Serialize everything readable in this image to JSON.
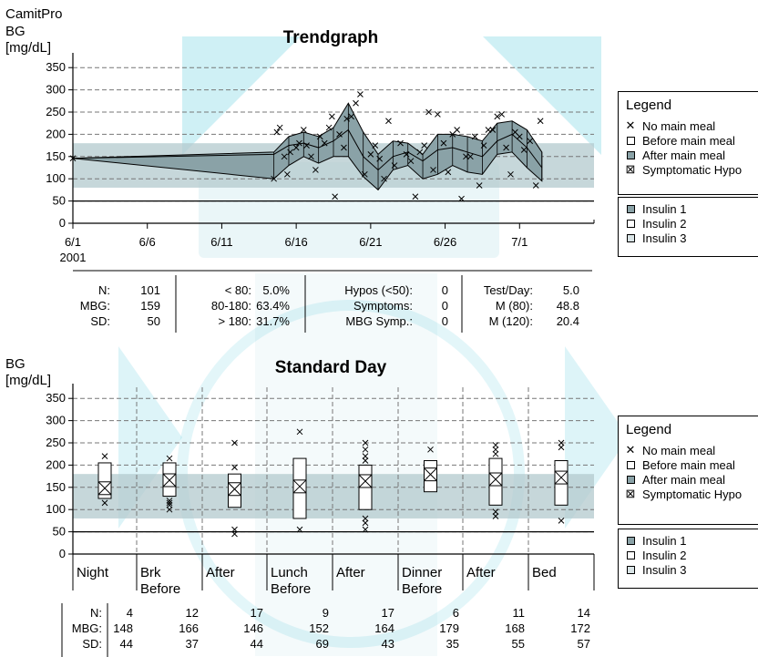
{
  "header": {
    "app": "CamitPro",
    "bg_label": "BG",
    "unit": "[mg/dL]"
  },
  "colors": {
    "target_band": "#b3c9cd",
    "envelope": "#8aa2a7",
    "box_fill": "#ffffff",
    "watermark": "#40c4d8"
  },
  "trend_stats": {
    "col1": [
      {
        "label": "N:",
        "value": "101"
      },
      {
        "label": "MBG:",
        "value": "159"
      },
      {
        "label": "SD:",
        "value": "50"
      }
    ],
    "col2": [
      {
        "label": "< 80:",
        "value": "5.0%"
      },
      {
        "label": "80-180:",
        "value": "63.4%"
      },
      {
        "label": "> 180:",
        "value": "31.7%"
      }
    ],
    "col3": [
      {
        "label": "Hypos (<50):",
        "value": "0"
      },
      {
        "label": "Symptoms:",
        "value": "0"
      },
      {
        "label": "MBG Symp.:",
        "value": "0"
      }
    ],
    "col4": [
      {
        "label": "Test/Day:",
        "value": "5.0"
      },
      {
        "label": "M (80):",
        "value": "48.8"
      },
      {
        "label": "M (120):",
        "value": "20.4"
      }
    ]
  },
  "std_stats": {
    "labels": [
      "N:",
      "MBG:",
      "SD:"
    ],
    "N": [
      "4",
      "12",
      "17",
      "9",
      "17",
      "6",
      "11",
      "14"
    ],
    "MBG": [
      "148",
      "166",
      "146",
      "152",
      "164",
      "179",
      "168",
      "172"
    ],
    "SD": [
      "44",
      "37",
      "44",
      "69",
      "43",
      "35",
      "55",
      "57"
    ]
  },
  "legend1": {
    "title": "Legend",
    "items": [
      {
        "icon": "x-mark-icon",
        "label": "No main meal"
      },
      {
        "icon": "empty-square-icon",
        "label": "Before main meal"
      },
      {
        "icon": "gray-square-icon",
        "label": "After main meal"
      },
      {
        "icon": "crossed-square-icon",
        "label": "Symptomatic Hypo"
      }
    ],
    "insulin": [
      "Insulin 1",
      "Insulin 2",
      "Insulin 3"
    ]
  },
  "legend2": {
    "title": "Legend",
    "items": [
      {
        "icon": "x-mark-icon",
        "label": "No main meal"
      },
      {
        "icon": "empty-square-icon",
        "label": "Before main meal"
      },
      {
        "icon": "gray-square-icon",
        "label": "After main meal"
      },
      {
        "icon": "crossed-square-icon",
        "label": "Symptomatic Hypo"
      }
    ],
    "insulin": [
      "Insulin 1",
      "Insulin 2",
      "Insulin 3"
    ]
  },
  "chart_data": [
    {
      "type": "line",
      "title": "Trendgraph",
      "ylabel": "BG [mg/dL]",
      "ylim": [
        0,
        375
      ],
      "yticks": [
        "0",
        "50",
        "100",
        "150",
        "200",
        "250",
        "300",
        "350"
      ],
      "xticks": [
        "6/1",
        "6/6",
        "6/11",
        "6/16",
        "6/21",
        "6/26",
        "7/1"
      ],
      "xtick_days": [
        0,
        5,
        10,
        15,
        20,
        25,
        30
      ],
      "x_year_label": "2001",
      "x_range_days": [
        0,
        35
      ],
      "target_range": [
        80,
        180
      ],
      "reference_line": 50,
      "grid": "horizontal dashed",
      "series": [
        {
          "x": [
            0,
            13.5,
            14.5,
            15.5,
            16.5,
            17.5,
            18.5,
            19.5,
            20.5,
            21.5,
            22.5,
            23.5,
            24.5,
            25.5,
            26.5,
            27.5,
            28.5,
            29.5,
            30.5,
            31.5
          ],
          "upper": [
            146,
            160,
            195,
            205,
            195,
            215,
            270,
            205,
            155,
            185,
            180,
            155,
            200,
            200,
            195,
            185,
            225,
            230,
            210,
            160
          ],
          "mean": [
            146,
            155,
            175,
            180,
            170,
            185,
            210,
            150,
            120,
            150,
            160,
            140,
            165,
            170,
            160,
            150,
            185,
            200,
            170,
            125
          ],
          "lower": [
            146,
            100,
            130,
            150,
            135,
            150,
            150,
            105,
            75,
            120,
            130,
            100,
            110,
            130,
            115,
            110,
            155,
            160,
            125,
            95
          ]
        },
        {
          "x": [
            0,
            13.5,
            13.7,
            13.9,
            14.2,
            14.4,
            14.6,
            15,
            15.2,
            15.5,
            15.7,
            16,
            16.3,
            16.6,
            16.9,
            17.2,
            17.4,
            17.6,
            17.9,
            18.2,
            18.4,
            18.7,
            19,
            19.3,
            19.6,
            20,
            20.3,
            20.6,
            20.9,
            21.2,
            21.6,
            22,
            22.4,
            22.7,
            23,
            23.3,
            23.6,
            23.9,
            24.2,
            24.5,
            24.9,
            25.2,
            25.5,
            25.8,
            26.1,
            26.4,
            26.7,
            27,
            27.3,
            27.6,
            27.9,
            28.2,
            28.5,
            28.8,
            29.1,
            29.4,
            29.7,
            30,
            30.3,
            30.7,
            31.1,
            31.4
          ],
          "y": [
            146,
            100,
            205,
            215,
            150,
            110,
            160,
            170,
            180,
            210,
            175,
            150,
            120,
            195,
            180,
            215,
            240,
            60,
            200,
            170,
            235,
            240,
            270,
            290,
            110,
            155,
            175,
            145,
            100,
            230,
            130,
            180,
            155,
            140,
            60,
            160,
            175,
            250,
            120,
            245,
            180,
            115,
            200,
            210,
            55,
            150,
            150,
            195,
            85,
            175,
            210,
            210,
            240,
            245,
            170,
            110,
            205,
            195,
            165,
            185,
            85,
            230
          ]
        }
      ]
    },
    {
      "type": "box",
      "title": "Standard Day",
      "ylabel": "BG [mg/dL]",
      "ylim": [
        0,
        375
      ],
      "yticks": [
        "0",
        "50",
        "100",
        "150",
        "200",
        "250",
        "300",
        "350"
      ],
      "categories": [
        {
          "line1": "Night",
          "line2": ""
        },
        {
          "line1": "Brk",
          "line2": "Before"
        },
        {
          "line1": "After",
          "line2": ""
        },
        {
          "line1": "Lunch",
          "line2": "Before"
        },
        {
          "line1": "After",
          "line2": ""
        },
        {
          "line1": "Dinner",
          "line2": "Before"
        },
        {
          "line1": "After",
          "line2": ""
        },
        {
          "line1": "Bed",
          "line2": ""
        }
      ],
      "target_range": [
        80,
        180
      ],
      "reference_line": 50,
      "boxes": [
        {
          "low": 125,
          "high": 205,
          "mean": 148
        },
        {
          "low": 130,
          "high": 205,
          "mean": 166
        },
        {
          "low": 105,
          "high": 180,
          "mean": 146
        },
        {
          "low": 80,
          "high": 215,
          "mean": 152
        },
        {
          "low": 100,
          "high": 200,
          "mean": 164
        },
        {
          "low": 140,
          "high": 210,
          "mean": 179
        },
        {
          "low": 110,
          "high": 215,
          "mean": 168
        },
        {
          "low": 110,
          "high": 210,
          "mean": 172
        }
      ],
      "outliers": [
        [
          115,
          220
        ],
        [
          100,
          110,
          115,
          120,
          215
        ],
        [
          45,
          55,
          195,
          250
        ],
        [
          55,
          275
        ],
        [
          55,
          70,
          80,
          210,
          220,
          235,
          250
        ],
        [
          235
        ],
        [
          85,
          95,
          225,
          235,
          245
        ],
        [
          75,
          240,
          250
        ]
      ]
    }
  ]
}
